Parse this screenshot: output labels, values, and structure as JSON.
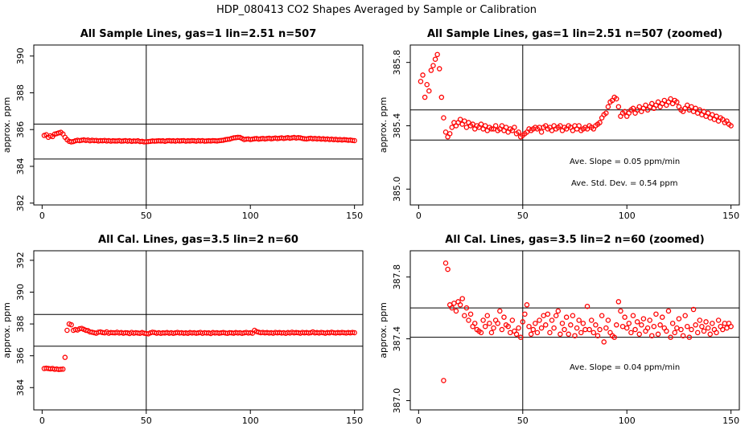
{
  "page": {
    "title": "HDP_080413  CO2 Shapes Averaged by Sample or Calibration"
  },
  "chart_data": [
    {
      "type": "scatter",
      "title": "All Sample Lines, gas=1 lin=2.51 n=507",
      "ylabel": "approx. ppm",
      "xlim": [
        -4,
        154
      ],
      "ylim": [
        381.9,
        390.6
      ],
      "xticks": [
        0,
        50,
        100,
        150
      ],
      "yticks": [
        382,
        384,
        386,
        388,
        390
      ],
      "hlines": [
        384.4,
        386.3
      ],
      "vlines": [
        50
      ],
      "grid": false,
      "annotations": [],
      "series": [
        {
          "color": "#ff0000",
          "x": [
            1,
            2,
            3,
            4,
            5,
            6,
            7,
            8,
            9,
            10,
            11,
            12,
            13,
            14,
            15,
            16,
            17,
            18,
            19,
            20,
            21,
            22,
            23,
            24,
            25,
            26,
            27,
            28,
            29,
            30,
            31,
            32,
            33,
            34,
            35,
            36,
            37,
            38,
            39,
            40,
            41,
            42,
            43,
            44,
            45,
            46,
            47,
            48,
            49,
            50,
            51,
            52,
            53,
            54,
            55,
            56,
            57,
            58,
            59,
            60,
            61,
            62,
            63,
            64,
            65,
            66,
            67,
            68,
            69,
            70,
            71,
            72,
            73,
            74,
            75,
            76,
            77,
            78,
            79,
            80,
            81,
            82,
            83,
            84,
            85,
            86,
            87,
            88,
            89,
            90,
            91,
            92,
            93,
            94,
            95,
            96,
            97,
            98,
            99,
            100,
            101,
            102,
            103,
            104,
            105,
            106,
            107,
            108,
            109,
            110,
            111,
            112,
            113,
            114,
            115,
            116,
            117,
            118,
            119,
            120,
            121,
            122,
            123,
            124,
            125,
            126,
            127,
            128,
            129,
            130,
            131,
            132,
            133,
            134,
            135,
            136,
            137,
            138,
            139,
            140,
            141,
            142,
            143,
            144,
            145,
            146,
            147,
            148,
            149,
            150
          ],
          "y": [
            385.68,
            385.72,
            385.58,
            385.66,
            385.62,
            385.75,
            385.78,
            385.82,
            385.85,
            385.76,
            385.58,
            385.45,
            385.36,
            385.33,
            385.35,
            385.39,
            385.42,
            385.4,
            385.42,
            385.44,
            385.41,
            385.43,
            385.39,
            385.42,
            385.4,
            385.41,
            385.38,
            385.4,
            385.39,
            385.41,
            385.38,
            385.4,
            385.37,
            385.39,
            385.38,
            385.38,
            385.4,
            385.37,
            385.38,
            385.4,
            385.37,
            385.39,
            385.36,
            385.38,
            385.37,
            385.39,
            385.35,
            385.36,
            385.33,
            385.34,
            385.35,
            385.36,
            385.38,
            385.37,
            385.38,
            385.39,
            385.38,
            385.39,
            385.36,
            385.39,
            385.4,
            385.38,
            385.39,
            385.37,
            385.4,
            385.38,
            385.39,
            385.4,
            385.37,
            385.39,
            385.38,
            385.4,
            385.39,
            385.37,
            385.4,
            385.38,
            385.4,
            385.37,
            385.38,
            385.39,
            385.38,
            385.4,
            385.39,
            385.38,
            385.4,
            385.41,
            385.42,
            385.45,
            385.47,
            385.48,
            385.52,
            385.55,
            385.56,
            385.58,
            385.57,
            385.52,
            385.46,
            385.48,
            385.49,
            385.46,
            385.48,
            385.5,
            385.51,
            385.48,
            385.5,
            385.52,
            385.49,
            385.51,
            385.53,
            385.5,
            385.52,
            385.54,
            385.51,
            385.53,
            385.55,
            385.52,
            385.54,
            385.56,
            385.53,
            385.55,
            385.57,
            385.54,
            385.56,
            385.55,
            385.52,
            385.5,
            385.49,
            385.51,
            385.53,
            385.5,
            385.52,
            385.49,
            385.51,
            385.48,
            385.5,
            385.47,
            385.49,
            385.46,
            385.48,
            385.45,
            385.47,
            385.44,
            385.46,
            385.43,
            385.45,
            385.44,
            385.42,
            385.43,
            385.41,
            385.4
          ]
        }
      ]
    },
    {
      "type": "scatter",
      "title": "All Sample Lines, gas=1 lin=2.51 n=507 (zoomed)",
      "ylabel": "approx. ppm",
      "xlim": [
        -4,
        154
      ],
      "ylim": [
        384.9,
        385.91
      ],
      "xticks": [
        0,
        50,
        100,
        150
      ],
      "yticks": [
        385.0,
        385.4,
        385.8
      ],
      "ytick_labels": [
        "385.0",
        "385.4",
        "385.8"
      ],
      "hlines": [
        385.31,
        385.5
      ],
      "vlines": [
        50
      ],
      "grid": false,
      "annotations": [
        "Ave. Slope =  0.05  ppm/min",
        "Ave. Std. Dev. =  0.54  ppm"
      ],
      "series_ref": 0
    },
    {
      "type": "scatter",
      "title": "All Cal. Lines, gas=3.5 lin=2 n=60",
      "ylabel": "approx. ppm",
      "xlim": [
        -4,
        154
      ],
      "ylim": [
        382.6,
        392.6
      ],
      "xticks": [
        0,
        50,
        100,
        150
      ],
      "yticks": [
        384,
        386,
        388,
        390,
        392
      ],
      "hlines": [
        386.6,
        388.6
      ],
      "vlines": [
        50
      ],
      "grid": false,
      "annotations": [],
      "series": [
        {
          "color": "#ff0000",
          "x": [
            1,
            2,
            3,
            4,
            5,
            6,
            7,
            8,
            9,
            10,
            11,
            12,
            13,
            14,
            15,
            16,
            17,
            18,
            19,
            20,
            21,
            22,
            23,
            24,
            25,
            26,
            27,
            28,
            29,
            30,
            31,
            32,
            33,
            34,
            35,
            36,
            37,
            38,
            39,
            40,
            41,
            42,
            43,
            44,
            45,
            46,
            47,
            48,
            49,
            50,
            51,
            52,
            53,
            54,
            55,
            56,
            57,
            58,
            59,
            60,
            61,
            62,
            63,
            64,
            65,
            66,
            67,
            68,
            69,
            70,
            71,
            72,
            73,
            74,
            75,
            76,
            77,
            78,
            79,
            80,
            81,
            82,
            83,
            84,
            85,
            86,
            87,
            88,
            89,
            90,
            91,
            92,
            93,
            94,
            95,
            96,
            97,
            98,
            99,
            100,
            101,
            102,
            103,
            104,
            105,
            106,
            107,
            108,
            109,
            110,
            111,
            112,
            113,
            114,
            115,
            116,
            117,
            118,
            119,
            120,
            121,
            122,
            123,
            124,
            125,
            126,
            127,
            128,
            129,
            130,
            131,
            132,
            133,
            134,
            135,
            136,
            137,
            138,
            139,
            140,
            141,
            142,
            143,
            144,
            145,
            146,
            147,
            148,
            149,
            150
          ],
          "y": [
            385.2,
            385.22,
            385.2,
            385.18,
            385.2,
            385.15,
            385.17,
            385.14,
            385.15,
            385.16,
            385.9,
            387.6,
            388.0,
            387.95,
            387.6,
            387.65,
            387.62,
            387.7,
            387.72,
            387.66,
            387.6,
            387.58,
            387.5,
            387.48,
            387.45,
            387.42,
            387.48,
            387.5,
            387.46,
            387.44,
            387.5,
            387.42,
            387.46,
            387.45,
            387.44,
            387.48,
            387.43,
            387.46,
            387.42,
            387.45,
            387.44,
            387.4,
            387.47,
            387.42,
            387.45,
            387.43,
            387.41,
            387.46,
            387.42,
            387.4,
            387.38,
            387.44,
            387.48,
            387.46,
            387.42,
            387.45,
            387.41,
            387.44,
            387.43,
            387.46,
            387.42,
            387.45,
            387.41,
            387.44,
            387.47,
            387.43,
            387.45,
            387.42,
            387.44,
            387.41,
            387.46,
            387.43,
            387.45,
            387.42,
            387.44,
            387.47,
            387.41,
            387.45,
            387.43,
            387.44,
            387.4,
            387.46,
            387.43,
            387.45,
            387.42,
            387.44,
            387.46,
            387.43,
            387.41,
            387.45,
            387.44,
            387.42,
            387.46,
            387.43,
            387.45,
            387.41,
            387.44,
            387.47,
            387.43,
            387.45,
            387.42,
            387.6,
            387.52,
            387.48,
            387.45,
            387.47,
            387.44,
            387.46,
            387.43,
            387.45,
            387.42,
            387.47,
            387.44,
            387.46,
            387.43,
            387.45,
            387.41,
            387.46,
            387.43,
            387.48,
            387.44,
            387.46,
            387.45,
            387.42,
            387.47,
            387.44,
            387.46,
            387.43,
            387.45,
            387.5,
            387.44,
            387.46,
            387.43,
            387.47,
            387.45,
            387.42,
            387.46,
            387.44,
            387.48,
            387.45,
            387.43,
            387.46,
            387.44,
            387.47,
            387.45,
            387.43,
            387.46,
            387.44,
            387.47,
            387.45
          ]
        }
      ]
    },
    {
      "type": "scatter",
      "title": "All Cal. Lines, gas=3.5 lin=2 n=60 (zoomed)",
      "ylabel": "approx. ppm",
      "xlim": [
        -4,
        154
      ],
      "ylim": [
        386.94,
        387.97
      ],
      "xticks": [
        0,
        50,
        100,
        150
      ],
      "yticks": [
        387.0,
        387.4,
        387.8
      ],
      "ytick_labels": [
        "387.0",
        "387.4",
        "387.8"
      ],
      "hlines": [
        387.41,
        387.6
      ],
      "vlines": [
        50
      ],
      "grid": false,
      "annotations": [
        "Ave. Slope =  0.04  ppm/min"
      ],
      "series": [
        {
          "color": "#ff0000",
          "x": [
            12,
            13,
            14,
            15,
            16,
            17,
            18,
            19,
            20,
            21,
            22,
            23,
            24,
            25,
            26,
            27,
            28,
            29,
            30,
            31,
            32,
            33,
            34,
            35,
            36,
            37,
            38,
            39,
            40,
            41,
            42,
            43,
            44,
            45,
            46,
            47,
            48,
            49,
            50,
            51,
            52,
            53,
            54,
            55,
            56,
            57,
            58,
            59,
            60,
            61,
            62,
            63,
            64,
            65,
            66,
            67,
            68,
            69,
            70,
            71,
            72,
            73,
            74,
            75,
            76,
            77,
            78,
            79,
            80,
            81,
            82,
            83,
            84,
            85,
            86,
            87,
            88,
            89,
            90,
            91,
            92,
            93,
            94,
            95,
            96,
            97,
            98,
            99,
            100,
            101,
            102,
            103,
            104,
            105,
            106,
            107,
            108,
            109,
            110,
            111,
            112,
            113,
            114,
            115,
            116,
            117,
            118,
            119,
            120,
            121,
            122,
            123,
            124,
            125,
            126,
            127,
            128,
            129,
            130,
            131,
            132,
            133,
            134,
            135,
            136,
            137,
            138,
            139,
            140,
            141,
            142,
            143,
            144,
            145,
            146,
            147,
            148,
            149,
            150
          ],
          "y": [
            387.13,
            387.89,
            387.85,
            387.62,
            387.6,
            387.63,
            387.58,
            387.64,
            387.62,
            387.66,
            387.55,
            387.6,
            387.52,
            387.56,
            387.48,
            387.5,
            387.46,
            387.45,
            387.44,
            387.52,
            387.48,
            387.55,
            387.5,
            387.44,
            387.47,
            387.52,
            387.5,
            387.58,
            387.46,
            387.54,
            387.49,
            387.48,
            387.44,
            387.52,
            387.45,
            387.43,
            387.47,
            387.41,
            387.51,
            387.56,
            387.62,
            387.48,
            387.43,
            387.46,
            387.5,
            387.44,
            387.52,
            387.47,
            387.55,
            387.49,
            387.56,
            387.44,
            387.52,
            387.47,
            387.55,
            387.58,
            387.43,
            387.5,
            387.46,
            387.54,
            387.43,
            387.49,
            387.55,
            387.42,
            387.47,
            387.52,
            387.44,
            387.5,
            387.46,
            387.61,
            387.46,
            387.52,
            387.44,
            387.49,
            387.42,
            387.46,
            387.55,
            387.38,
            387.47,
            387.52,
            387.44,
            387.42,
            387.41,
            387.49,
            387.64,
            387.58,
            387.48,
            387.54,
            387.47,
            387.5,
            387.44,
            387.55,
            387.46,
            387.51,
            387.43,
            387.49,
            387.53,
            387.45,
            387.47,
            387.52,
            387.42,
            387.48,
            387.56,
            387.43,
            387.49,
            387.54,
            387.47,
            387.45,
            387.58,
            387.41,
            387.5,
            387.44,
            387.47,
            387.53,
            387.46,
            387.42,
            387.55,
            387.48,
            387.41,
            387.46,
            387.59,
            387.49,
            387.44,
            387.52,
            387.48,
            387.45,
            387.51,
            387.47,
            387.43,
            387.5,
            387.46,
            387.44,
            387.52,
            387.48,
            387.46,
            387.5,
            387.47,
            387.5,
            387.48
          ]
        }
      ]
    }
  ]
}
